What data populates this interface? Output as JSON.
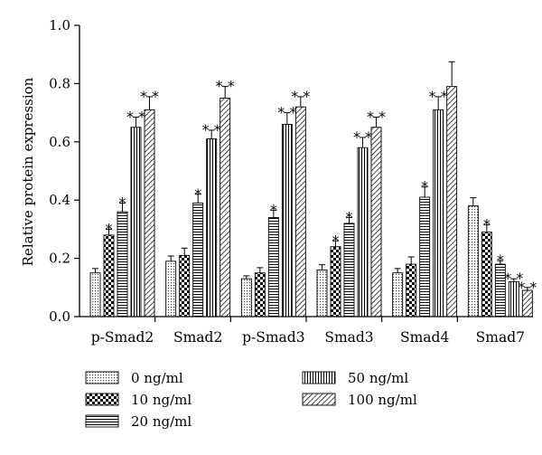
{
  "chart_data": {
    "type": "bar",
    "ylabel": "Relative protein expression",
    "xlabel": "",
    "ylim": [
      0,
      1.0
    ],
    "yticks": [
      "0.0",
      "0.2",
      "0.4",
      "0.6",
      "0.8",
      "1.0"
    ],
    "grid": false,
    "legend_position": "bottom",
    "categories": [
      "p-Smad2",
      "Smad2",
      "p-Smad3",
      "Smad3",
      "Smad4",
      "Smad7"
    ],
    "series": [
      {
        "name": "0 ng/ml",
        "pattern": "dots",
        "values": [
          0.15,
          0.19,
          0.13,
          0.16,
          0.15,
          0.38
        ],
        "errors": [
          0.015,
          0.018,
          0.01,
          0.018,
          0.015,
          0.028
        ],
        "significance": [
          "",
          "",
          "",
          "",
          "",
          ""
        ]
      },
      {
        "name": "10 ng/ml",
        "pattern": "checker",
        "values": [
          0.28,
          0.21,
          0.15,
          0.24,
          0.18,
          0.29
        ],
        "errors": [
          0.02,
          0.025,
          0.018,
          0.02,
          0.025,
          0.025
        ],
        "significance": [
          "*",
          "",
          "",
          "*",
          "",
          "*"
        ]
      },
      {
        "name": "20 ng/ml",
        "pattern": "horizontal",
        "values": [
          0.36,
          0.39,
          0.34,
          0.32,
          0.41,
          0.18
        ],
        "errors": [
          0.03,
          0.03,
          0.025,
          0.02,
          0.035,
          0.012
        ],
        "significance": [
          "*",
          "*",
          "*",
          "*",
          "*",
          "*"
        ]
      },
      {
        "name": "50 ng/ml",
        "pattern": "vertical",
        "values": [
          0.65,
          0.61,
          0.66,
          0.58,
          0.71,
          0.12
        ],
        "errors": [
          0.035,
          0.03,
          0.04,
          0.035,
          0.045,
          0.01
        ],
        "significance": [
          "**",
          "**",
          "**",
          "**",
          "**",
          "**"
        ]
      },
      {
        "name": "100 ng/ml",
        "pattern": "diagonal",
        "values": [
          0.71,
          0.75,
          0.72,
          0.65,
          0.79,
          0.09
        ],
        "errors": [
          0.045,
          0.04,
          0.035,
          0.035,
          0.085,
          0.01
        ],
        "significance": [
          "**",
          "**",
          "**",
          "**",
          "",
          "**"
        ]
      }
    ]
  }
}
